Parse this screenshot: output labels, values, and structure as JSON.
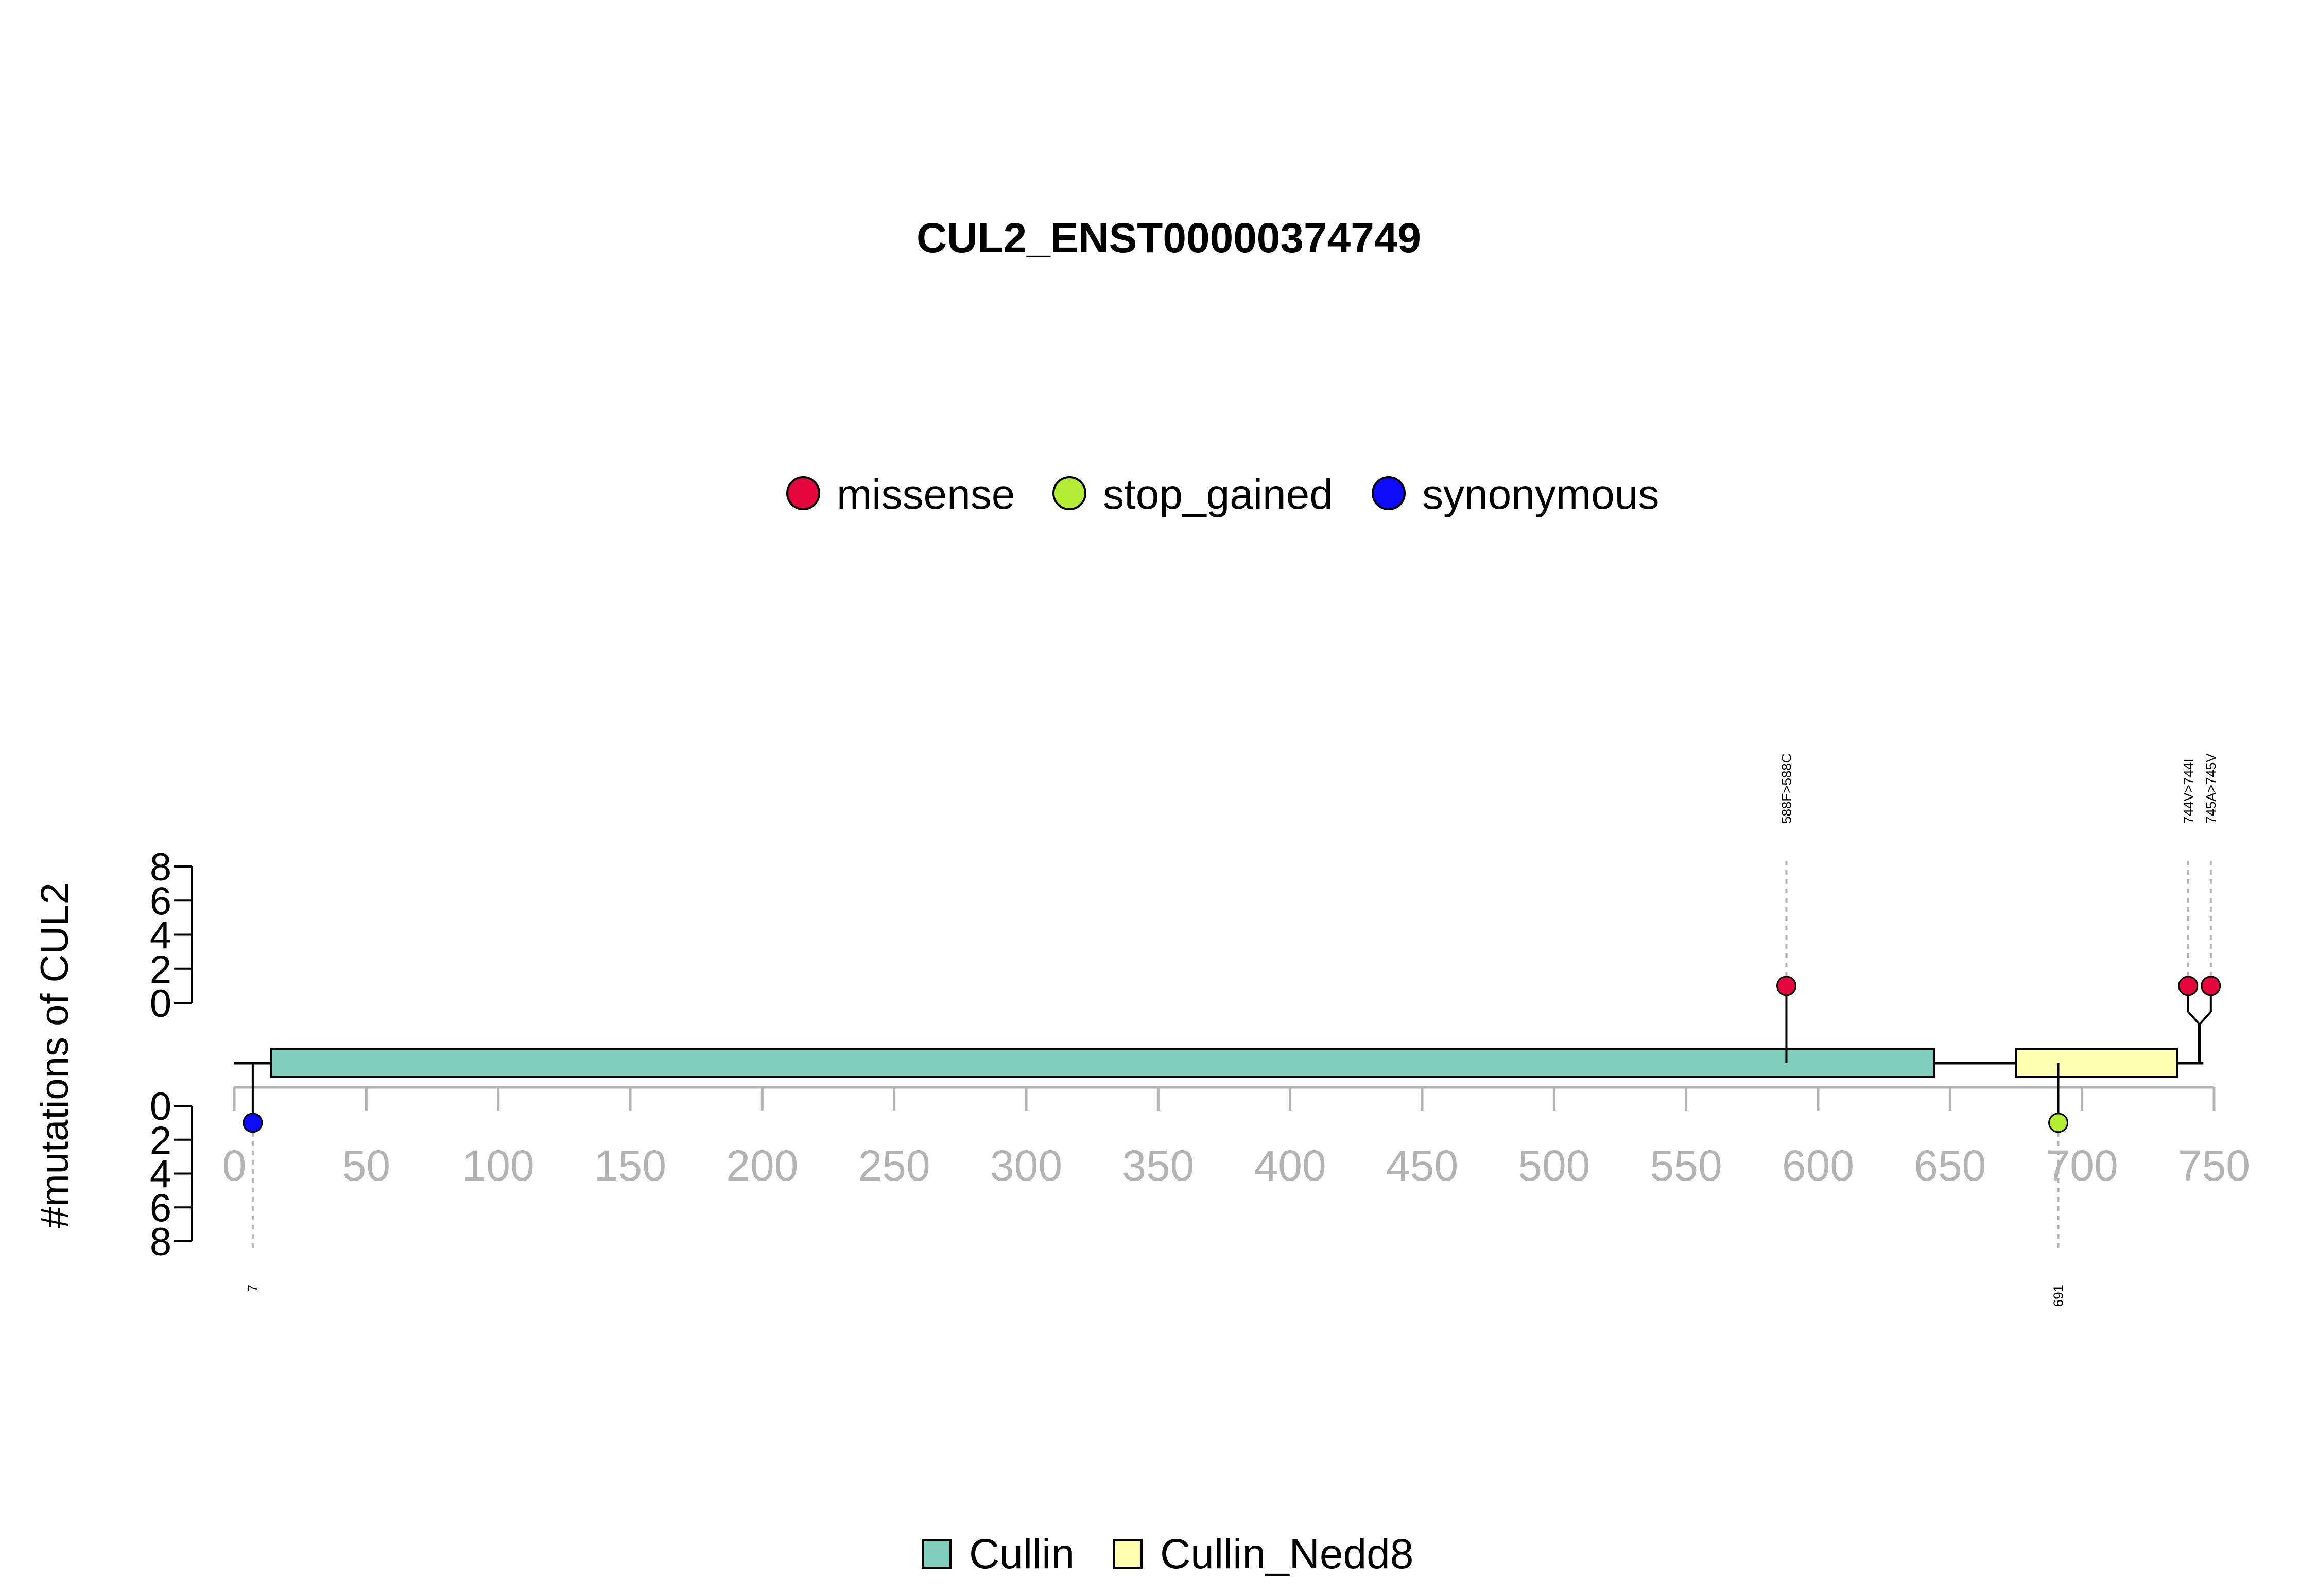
{
  "chart_data": {
    "type": "lollipop",
    "title": "CUL2_ENST00000374749",
    "ylabel": "#mutations of CUL2",
    "protein_length": 745,
    "xlim": [
      0,
      750
    ],
    "xticks": [
      0,
      50,
      100,
      150,
      200,
      250,
      300,
      350,
      400,
      450,
      500,
      550,
      600,
      650,
      700,
      750
    ],
    "yticks_top": [
      0,
      2,
      4,
      6,
      8
    ],
    "yticks_bottom": [
      0,
      2,
      4,
      6,
      8
    ],
    "mutation_legend": [
      {
        "name": "missense",
        "color": "#e3073c"
      },
      {
        "name": "stop_gained",
        "color": "#b2ec33"
      },
      {
        "name": "synonymous",
        "color": "#0d0aff"
      }
    ],
    "domain_legend": [
      {
        "name": "Cullin",
        "color": "#7fcdbb"
      },
      {
        "name": "Cullin_Nedd8",
        "color": "#ffffb2"
      }
    ],
    "domains": [
      {
        "name": "Cullin",
        "start": 14,
        "end": 644,
        "color": "#7fcdbb"
      },
      {
        "name": "Cullin_Nedd8",
        "start": 675,
        "end": 736,
        "color": "#ffffb2"
      }
    ],
    "mutations_top": [
      {
        "label": "588F>588C",
        "position": 588,
        "count": 1,
        "type": "missense"
      },
      {
        "label": "744V>744I",
        "position": 744,
        "count": 1,
        "type": "missense"
      },
      {
        "label": "745A>745V",
        "position": 745,
        "count": 1,
        "type": "missense"
      }
    ],
    "mutations_bottom": [
      {
        "label": "7",
        "position": 7,
        "count": 1,
        "type": "synonymous"
      },
      {
        "label": "691",
        "position": 691,
        "count": 1,
        "type": "stop_gained"
      }
    ]
  }
}
